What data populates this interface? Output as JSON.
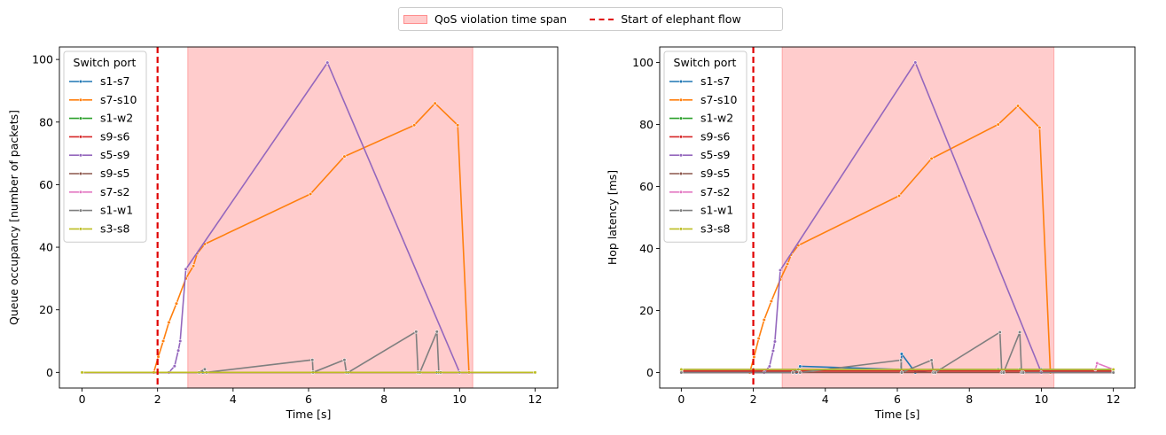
{
  "figure_legend": {
    "violation_label": "QoS violation time span",
    "elephant_label": "Start of elephant flow",
    "violation_color": "#ff0000",
    "elephant_color": "#e00000"
  },
  "chart_data": [
    {
      "type": "line",
      "xlabel": "Time [s]",
      "ylabel": "Queue occupancy [number of packets]",
      "xlim": [
        -0.6,
        12.6
      ],
      "ylim": [
        -5,
        104
      ],
      "xticks": [
        0,
        2,
        4,
        6,
        8,
        10,
        12
      ],
      "yticks": [
        0,
        20,
        40,
        60,
        80,
        100
      ],
      "grid": false,
      "legend_title": "Switch port",
      "legend_position": "top-left",
      "violation_span": [
        2.8,
        10.35
      ],
      "elephant_start": 2.0,
      "series": [
        {
          "name": "s1-s7",
          "color": "#1f77b4",
          "x": [
            0,
            2,
            3.2,
            6.1,
            8.9,
            9.4,
            10,
            12
          ],
          "y": [
            0,
            0,
            0,
            0,
            0,
            0,
            0,
            0
          ]
        },
        {
          "name": "s7-s10",
          "color": "#ff7f0e",
          "x": [
            0,
            1.9,
            2.02,
            2.15,
            2.3,
            2.5,
            2.75,
            2.95,
            3.05,
            3.25,
            6.05,
            6.95,
            8.8,
            9.35,
            9.95,
            10.25,
            12
          ],
          "y": [
            0,
            0,
            5,
            10,
            16,
            22,
            30,
            34,
            38,
            41,
            57,
            69,
            79,
            86,
            79,
            0,
            0
          ]
        },
        {
          "name": "s1-w2",
          "color": "#2ca02c",
          "x": [
            0,
            12
          ],
          "y": [
            0,
            0
          ]
        },
        {
          "name": "s9-s6",
          "color": "#d62728",
          "x": [
            0,
            12
          ],
          "y": [
            0,
            0
          ]
        },
        {
          "name": "s5-s9",
          "color": "#9467bd",
          "x": [
            0,
            2.3,
            2.45,
            2.55,
            2.6,
            2.75,
            6.5,
            10,
            12
          ],
          "y": [
            0,
            0,
            2,
            7,
            10,
            33,
            99,
            0,
            0
          ]
        },
        {
          "name": "s9-s5",
          "color": "#8c564b",
          "x": [
            0,
            12
          ],
          "y": [
            0,
            0
          ]
        },
        {
          "name": "s7-s2",
          "color": "#e377c2",
          "x": [
            0,
            12
          ],
          "y": [
            0,
            0
          ]
        },
        {
          "name": "s1-w1",
          "color": "#7f7f7f",
          "x": [
            0,
            3.1,
            3.25,
            3.3,
            6.1,
            6.12,
            6.95,
            7.0,
            7.05,
            8.85,
            8.9,
            8.95,
            9.4,
            9.45,
            9.5,
            12
          ],
          "y": [
            0,
            0,
            1,
            0,
            4,
            0,
            4,
            0,
            0,
            13,
            0,
            0,
            13,
            0,
            0,
            0
          ]
        },
        {
          "name": "s3-s8",
          "color": "#bcbd22",
          "x": [
            0,
            12
          ],
          "y": [
            0,
            0
          ]
        }
      ]
    },
    {
      "type": "line",
      "xlabel": "Time [s]",
      "ylabel": "Hop latency [ms]",
      "xlim": [
        -0.6,
        12.6
      ],
      "ylim": [
        -5,
        105
      ],
      "xticks": [
        0,
        2,
        4,
        6,
        8,
        10,
        12
      ],
      "yticks": [
        0,
        20,
        40,
        60,
        80,
        100
      ],
      "grid": false,
      "legend_title": "Switch port",
      "legend_position": "top-left",
      "violation_span": [
        2.8,
        10.35
      ],
      "elephant_start": 2.0,
      "series": [
        {
          "name": "s1-s7",
          "color": "#1f77b4",
          "x": [
            0,
            2,
            3.2,
            3.3,
            6.1,
            6.12,
            6.5,
            7.2,
            8.9,
            9.4,
            10,
            11.5,
            12
          ],
          "y": [
            0,
            0,
            0,
            2,
            1,
            6,
            0,
            1,
            0.5,
            1,
            1,
            1,
            1
          ]
        },
        {
          "name": "s7-s10",
          "color": "#ff7f0e",
          "x": [
            0,
            1.9,
            2.02,
            2.15,
            2.3,
            2.5,
            2.75,
            2.95,
            3.05,
            3.25,
            6.05,
            6.95,
            8.8,
            9.35,
            9.95,
            10.25,
            12
          ],
          "y": [
            0,
            0,
            5,
            11,
            17,
            23,
            30,
            35,
            38,
            41,
            57,
            69,
            80,
            86,
            79,
            0,
            0
          ]
        },
        {
          "name": "s1-w2",
          "color": "#2ca02c",
          "x": [
            0,
            2,
            8.8,
            9.4,
            12
          ],
          "y": [
            1,
            1,
            1,
            1,
            1
          ]
        },
        {
          "name": "s9-s6",
          "color": "#d62728",
          "x": [
            0,
            12
          ],
          "y": [
            0.5,
            0.5
          ]
        },
        {
          "name": "s5-s9",
          "color": "#9467bd",
          "x": [
            0,
            2.3,
            2.45,
            2.55,
            2.6,
            2.75,
            6.5,
            10,
            12
          ],
          "y": [
            0,
            0,
            2,
            7,
            10,
            33,
            100,
            0,
            0
          ]
        },
        {
          "name": "s9-s5",
          "color": "#8c564b",
          "x": [
            0,
            12
          ],
          "y": [
            0,
            0
          ]
        },
        {
          "name": "s7-s2",
          "color": "#e377c2",
          "x": [
            0,
            11.5,
            11.55,
            12
          ],
          "y": [
            1,
            1,
            3,
            1
          ]
        },
        {
          "name": "s1-w1",
          "color": "#7f7f7f",
          "x": [
            0,
            3.1,
            3.25,
            3.3,
            6.1,
            6.12,
            6.95,
            7.0,
            7.05,
            8.85,
            8.9,
            8.95,
            9.4,
            9.45,
            9.5,
            12
          ],
          "y": [
            0,
            0,
            1,
            0,
            4,
            0,
            4,
            0,
            0,
            13,
            0,
            0,
            13,
            0,
            0,
            0
          ]
        },
        {
          "name": "s3-s8",
          "color": "#bcbd22",
          "x": [
            0,
            12
          ],
          "y": [
            1,
            1
          ]
        }
      ]
    }
  ]
}
